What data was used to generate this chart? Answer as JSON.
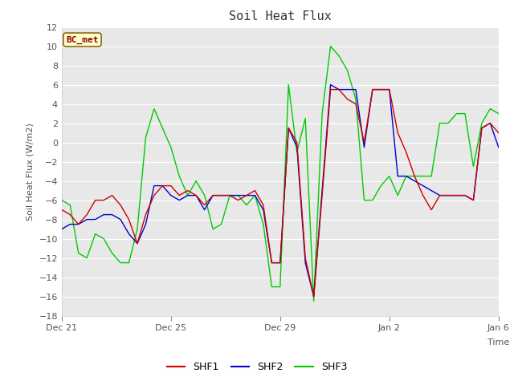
{
  "title": "Soil Heat Flux",
  "ylabel": "Soil Heat Flux (W/m2)",
  "xlabel": "Time",
  "ylim": [
    -18,
    12
  ],
  "yticks": [
    -18,
    -16,
    -14,
    -12,
    -10,
    -8,
    -6,
    -4,
    -2,
    0,
    2,
    4,
    6,
    8,
    10,
    12
  ],
  "plot_bg_color": "#e8e8e8",
  "fig_bg_color": "#ffffff",
  "grid_color": "#ffffff",
  "legend_label": "BC_met",
  "legend_box_color": "#ffffcc",
  "legend_box_edge": "#8B6914",
  "series_colors": [
    "#cc0000",
    "#0000cc",
    "#00cc00"
  ],
  "series_labels": [
    "SHF1",
    "SHF2",
    "SHF3"
  ],
  "x_tick_labels": [
    "Dec 21",
    "Dec 25",
    "Dec 29",
    "Jan 2",
    "Jan 6"
  ],
  "x_tick_positions": [
    0,
    4,
    8,
    12,
    16
  ],
  "shf1": [
    -7.0,
    -7.5,
    -8.5,
    -7.5,
    -6.0,
    -6.0,
    -5.5,
    -6.5,
    -8.0,
    -10.5,
    -7.5,
    -5.5,
    -4.5,
    -4.5,
    -5.5,
    -5.0,
    -5.5,
    -6.5,
    -5.5,
    -5.5,
    -5.5,
    -6.0,
    -5.5,
    -5.0,
    -6.5,
    -12.5,
    -12.5,
    1.5,
    0.0,
    -12.0,
    -16.0,
    -5.5,
    5.5,
    5.5,
    4.5,
    4.0,
    0.0,
    5.5,
    5.5,
    5.5,
    1.0,
    -1.0,
    -3.5,
    -5.5,
    -7.0,
    -5.5,
    -5.5,
    -5.5,
    -5.5,
    -6.0,
    1.5,
    2.0,
    1.0
  ],
  "shf2": [
    -9.0,
    -8.5,
    -8.5,
    -8.0,
    -8.0,
    -7.5,
    -7.5,
    -8.0,
    -9.5,
    -10.5,
    -8.5,
    -4.5,
    -4.5,
    -5.5,
    -6.0,
    -5.5,
    -5.5,
    -7.0,
    -5.5,
    -5.5,
    -5.5,
    -5.5,
    -5.5,
    -5.5,
    -7.0,
    -12.5,
    -12.5,
    1.5,
    -0.5,
    -12.5,
    -16.0,
    -5.0,
    6.0,
    5.5,
    5.5,
    5.5,
    -0.5,
    5.5,
    5.5,
    5.5,
    -3.5,
    -3.5,
    -4.0,
    -4.5,
    -5.0,
    -5.5,
    -5.5,
    -5.5,
    -5.5,
    -6.0,
    1.5,
    2.0,
    -0.5
  ],
  "shf3": [
    -6.0,
    -6.5,
    -11.5,
    -12.0,
    -9.5,
    -10.0,
    -11.5,
    -12.5,
    -12.5,
    -9.0,
    0.5,
    3.5,
    1.5,
    -0.5,
    -3.5,
    -5.5,
    -4.0,
    -5.5,
    -9.0,
    -8.5,
    -5.5,
    -5.5,
    -6.5,
    -5.5,
    -8.5,
    -15.0,
    -15.0,
    6.0,
    -1.0,
    2.5,
    -16.5,
    3.0,
    10.0,
    9.0,
    7.5,
    4.5,
    -6.0,
    -6.0,
    -4.5,
    -3.5,
    -5.5,
    -3.5,
    -3.5,
    -3.5,
    -3.5,
    2.0,
    2.0,
    3.0,
    3.0,
    -2.5,
    2.0,
    3.5,
    3.0
  ]
}
